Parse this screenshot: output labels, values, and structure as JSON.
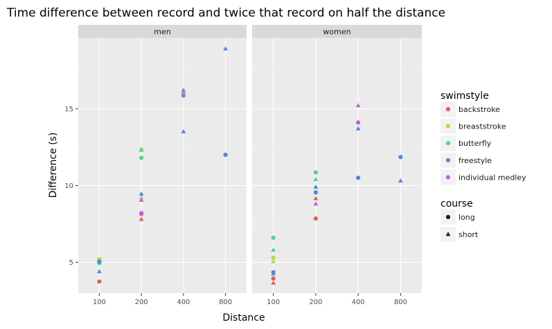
{
  "chart_data": {
    "type": "scatter",
    "title": "Time difference between record and twice that record on half the distance",
    "xlabel": "Distance",
    "ylabel": "Difference (s)",
    "x_scale": "log2",
    "x_ticks": [
      100,
      200,
      400,
      800
    ],
    "y_ticks": [
      5,
      10,
      15
    ],
    "xlim": [
      70.7,
      1131.4
    ],
    "ylim": [
      3.0,
      19.6
    ],
    "grid": true,
    "facet_strips": [
      "men",
      "women"
    ],
    "legend_position": "right",
    "color_legend": {
      "title": "swimstyle",
      "items": [
        {
          "label": "backstroke",
          "color": "#E15F54"
        },
        {
          "label": "breaststroke",
          "color": "#B5D84A"
        },
        {
          "label": "butterfly",
          "color": "#4FD584"
        },
        {
          "label": "freestyle",
          "color": "#5186DE"
        },
        {
          "label": "individual medley",
          "color": "#C45EDD"
        }
      ]
    },
    "shape_legend": {
      "title": "course",
      "items": [
        {
          "label": "long",
          "shape": "circle"
        },
        {
          "label": "short",
          "shape": "triangle"
        }
      ]
    },
    "panels": [
      {
        "strip": "men",
        "points": [
          {
            "x": 100,
            "y": 3.75,
            "style": "backstroke",
            "course": "long"
          },
          {
            "x": 100,
            "y": 5.2,
            "style": "breaststroke",
            "course": "long"
          },
          {
            "x": 100,
            "y": 5.1,
            "style": "breaststroke",
            "course": "short"
          },
          {
            "x": 100,
            "y": 4.95,
            "style": "butterfly",
            "course": "long"
          },
          {
            "x": 100,
            "y": 5.05,
            "style": "freestyle",
            "course": "long"
          },
          {
            "x": 100,
            "y": 4.4,
            "style": "freestyle",
            "course": "short"
          },
          {
            "x": 200,
            "y": 7.8,
            "style": "backstroke",
            "course": "short"
          },
          {
            "x": 200,
            "y": 8.15,
            "style": "backstroke",
            "course": "long"
          },
          {
            "x": 200,
            "y": 9.2,
            "style": "breaststroke",
            "course": "short"
          },
          {
            "x": 200,
            "y": 12.4,
            "style": "breaststroke",
            "course": "short"
          },
          {
            "x": 200,
            "y": 12.3,
            "style": "butterfly",
            "course": "short"
          },
          {
            "x": 200,
            "y": 11.8,
            "style": "butterfly",
            "course": "long"
          },
          {
            "x": 200,
            "y": 8.2,
            "style": "freestyle",
            "course": "long"
          },
          {
            "x": 200,
            "y": 9.45,
            "style": "freestyle",
            "course": "short"
          },
          {
            "x": 200,
            "y": 9.05,
            "style": "individual medley",
            "course": "short"
          },
          {
            "x": 200,
            "y": 8.2,
            "style": "individual medley",
            "course": "long"
          },
          {
            "x": 400,
            "y": 16.0,
            "style": "butterfly",
            "course": "long"
          },
          {
            "x": 400,
            "y": 13.5,
            "style": "freestyle",
            "course": "short"
          },
          {
            "x": 400,
            "y": 16.2,
            "style": "individual medley",
            "course": "short"
          },
          {
            "x": 400,
            "y": 15.85,
            "style": "individual medley",
            "course": "long"
          },
          {
            "x": 800,
            "y": 18.9,
            "style": "freestyle",
            "course": "short"
          },
          {
            "x": 800,
            "y": 12.0,
            "style": "freestyle",
            "course": "long"
          }
        ]
      },
      {
        "strip": "women",
        "points": [
          {
            "x": 100,
            "y": 3.95,
            "style": "backstroke",
            "course": "long"
          },
          {
            "x": 100,
            "y": 3.65,
            "style": "backstroke",
            "course": "short"
          },
          {
            "x": 100,
            "y": 5.3,
            "style": "breaststroke",
            "course": "long"
          },
          {
            "x": 100,
            "y": 5.05,
            "style": "breaststroke",
            "course": "short"
          },
          {
            "x": 100,
            "y": 6.6,
            "style": "butterfly",
            "course": "long"
          },
          {
            "x": 100,
            "y": 5.8,
            "style": "butterfly",
            "course": "short"
          },
          {
            "x": 100,
            "y": 4.35,
            "style": "freestyle",
            "course": "long"
          },
          {
            "x": 100,
            "y": 4.25,
            "style": "freestyle",
            "course": "short"
          },
          {
            "x": 200,
            "y": 7.85,
            "style": "backstroke",
            "course": "long"
          },
          {
            "x": 200,
            "y": 9.15,
            "style": "backstroke",
            "course": "short"
          },
          {
            "x": 200,
            "y": 10.85,
            "style": "butterfly",
            "course": "long"
          },
          {
            "x": 200,
            "y": 10.4,
            "style": "butterfly",
            "course": "short"
          },
          {
            "x": 200,
            "y": 9.55,
            "style": "freestyle",
            "course": "long"
          },
          {
            "x": 200,
            "y": 9.9,
            "style": "freestyle",
            "course": "short"
          },
          {
            "x": 200,
            "y": 8.8,
            "style": "individual medley",
            "course": "short"
          },
          {
            "x": 400,
            "y": 14.1,
            "style": "individual medley",
            "course": "long"
          },
          {
            "x": 400,
            "y": 15.2,
            "style": "individual medley",
            "course": "short"
          },
          {
            "x": 400,
            "y": 13.7,
            "style": "freestyle",
            "course": "short"
          },
          {
            "x": 400,
            "y": 10.5,
            "style": "freestyle",
            "course": "long"
          },
          {
            "x": 800,
            "y": 11.85,
            "style": "freestyle",
            "course": "long"
          },
          {
            "x": 800,
            "y": 10.3,
            "style": "freestyle",
            "course": "short"
          }
        ]
      }
    ]
  }
}
